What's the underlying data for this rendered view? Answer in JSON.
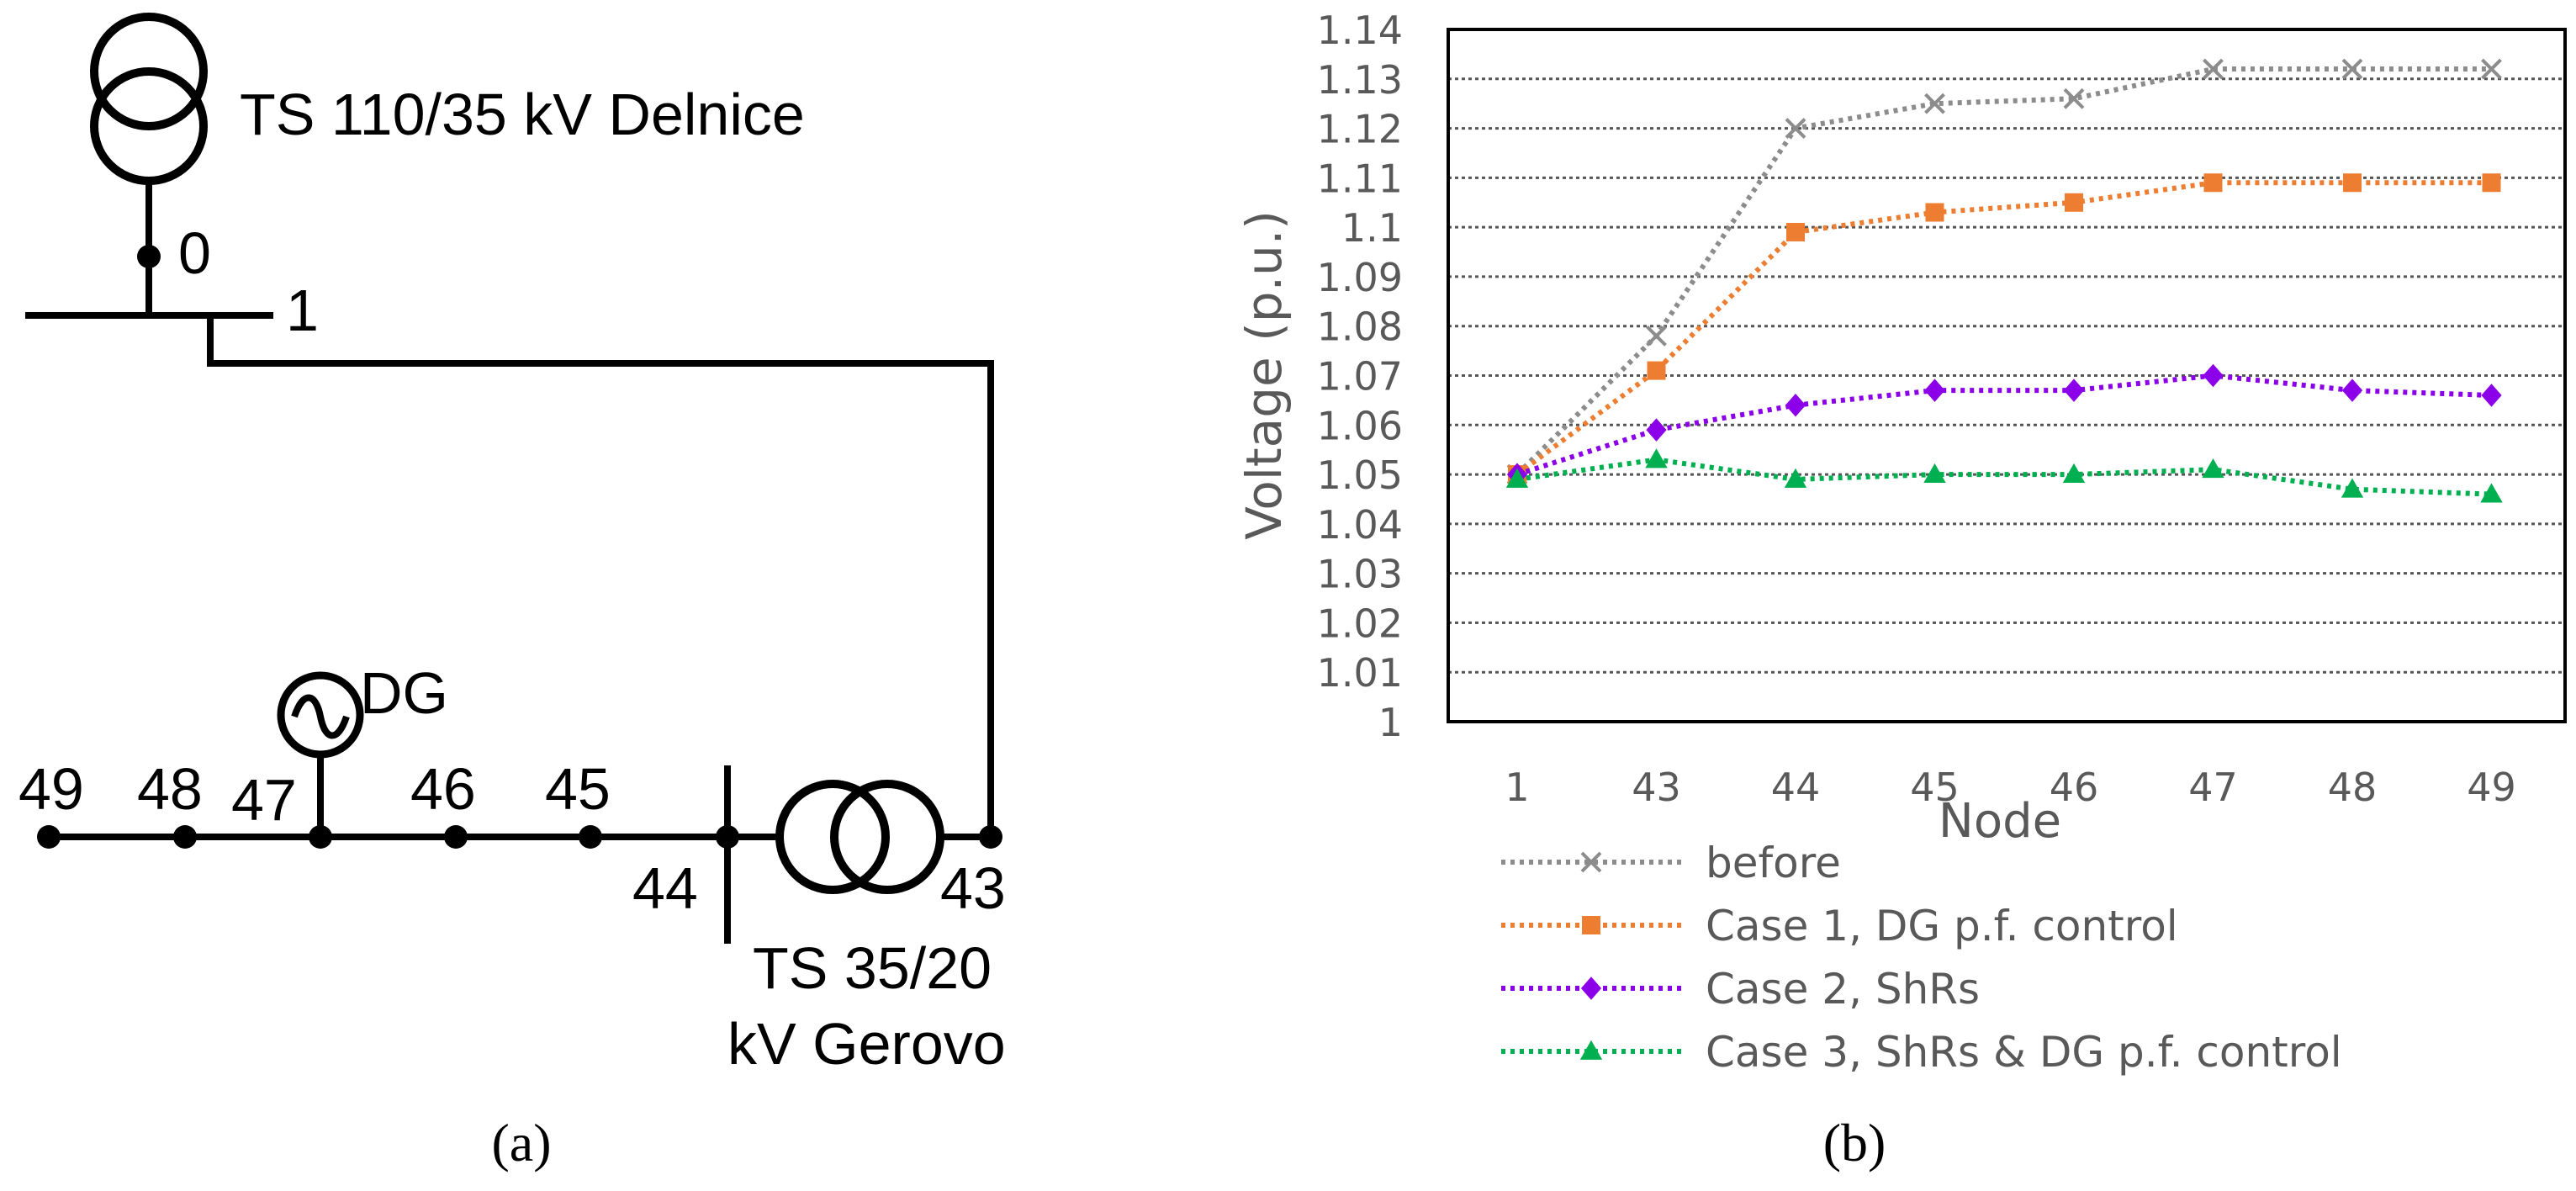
{
  "diagram": {
    "ts_top_label": "TS 110/35 kV Delnice",
    "node_0": "0",
    "node_1": "1",
    "dg_label": "DG",
    "nodes": {
      "n49": "49",
      "n48": "48",
      "n47": "47",
      "n46": "46",
      "n45": "45",
      "n44": "44",
      "n43": "43"
    },
    "ts_bottom_line1": "TS 35/20",
    "ts_bottom_line2": "kV Gerovo",
    "panel_label_a": "(a)"
  },
  "panel_label_b": "(b)",
  "chart_data": {
    "type": "line",
    "title": "",
    "xlabel": "Node",
    "ylabel": "Voltage (p.u.)",
    "categories": [
      "1",
      "43",
      "44",
      "45",
      "46",
      "47",
      "48",
      "49"
    ],
    "ylim": [
      1,
      1.14
    ],
    "yticks": [
      1,
      1.01,
      1.02,
      1.03,
      1.04,
      1.05,
      1.06,
      1.07,
      1.08,
      1.09,
      1.1,
      1.11,
      1.12,
      1.13,
      1.14
    ],
    "ytick_labels": [
      "1",
      "1.01",
      "1.02",
      "1.03",
      "1.04",
      "1.05",
      "1.06",
      "1.07",
      "1.08",
      "1.09",
      "1.1",
      "1.11",
      "1.12",
      "1.13",
      "1.14"
    ],
    "grid": "horizontal dotted",
    "legend_position": "bottom",
    "series": [
      {
        "name": "before",
        "marker": "x",
        "color": "#8c8c8c",
        "values": [
          1.05,
          1.078,
          1.12,
          1.125,
          1.126,
          1.132,
          1.132,
          1.132
        ]
      },
      {
        "name": "Case 1, DG p.f. control",
        "marker": "square",
        "color": "#ed7d31",
        "values": [
          1.05,
          1.071,
          1.099,
          1.103,
          1.105,
          1.109,
          1.109,
          1.109
        ]
      },
      {
        "name": "Case 2, ShRs",
        "marker": "diamond",
        "color": "#8b00e8",
        "values": [
          1.05,
          1.059,
          1.064,
          1.067,
          1.067,
          1.07,
          1.067,
          1.066
        ]
      },
      {
        "name": "Case 3, ShRs & DG p.f. control",
        "marker": "triangle",
        "color": "#00b050",
        "values": [
          1.049,
          1.053,
          1.049,
          1.05,
          1.05,
          1.051,
          1.047,
          1.046
        ]
      }
    ]
  }
}
